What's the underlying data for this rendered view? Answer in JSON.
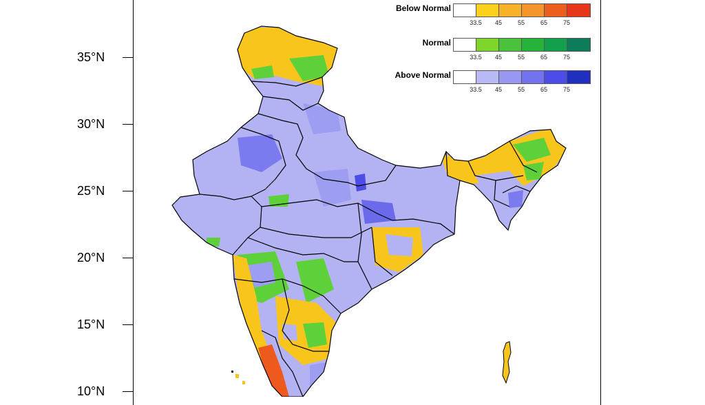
{
  "map": {
    "latitude_labels": [
      "35°N",
      "30°N",
      "25°N",
      "20°N",
      "15°N",
      "10°N"
    ],
    "colors": {
      "land_base": "#b3b3f4",
      "above_high": "#7b7bef",
      "normal_green": "#5ed13a",
      "below_yellow": "#f8c51d",
      "below_orange": "#f5a623",
      "below_red": "#ee5a1e",
      "border": "#000000"
    }
  },
  "legend": [
    {
      "title": "Below Normal",
      "swatches": [
        "#ffffff",
        "#fbd11f",
        "#f8b22a",
        "#f3952b",
        "#ec5d1e",
        "#e8361a"
      ],
      "ticks": [
        "33.5",
        "45",
        "55",
        "65",
        "75"
      ]
    },
    {
      "title": "Normal",
      "swatches": [
        "#ffffff",
        "#7ed62b",
        "#4bc23c",
        "#25b33a",
        "#13a04c",
        "#0c7c5b"
      ],
      "ticks": [
        "33.5",
        "45",
        "55",
        "65",
        "75"
      ]
    },
    {
      "title": "Above Normal",
      "swatches": [
        "#ffffff",
        "#b9b9f6",
        "#9898f3",
        "#7373f0",
        "#4c4ce9",
        "#1f2fbf"
      ],
      "ticks": [
        "33.5",
        "45",
        "55",
        "65",
        "75"
      ]
    }
  ]
}
